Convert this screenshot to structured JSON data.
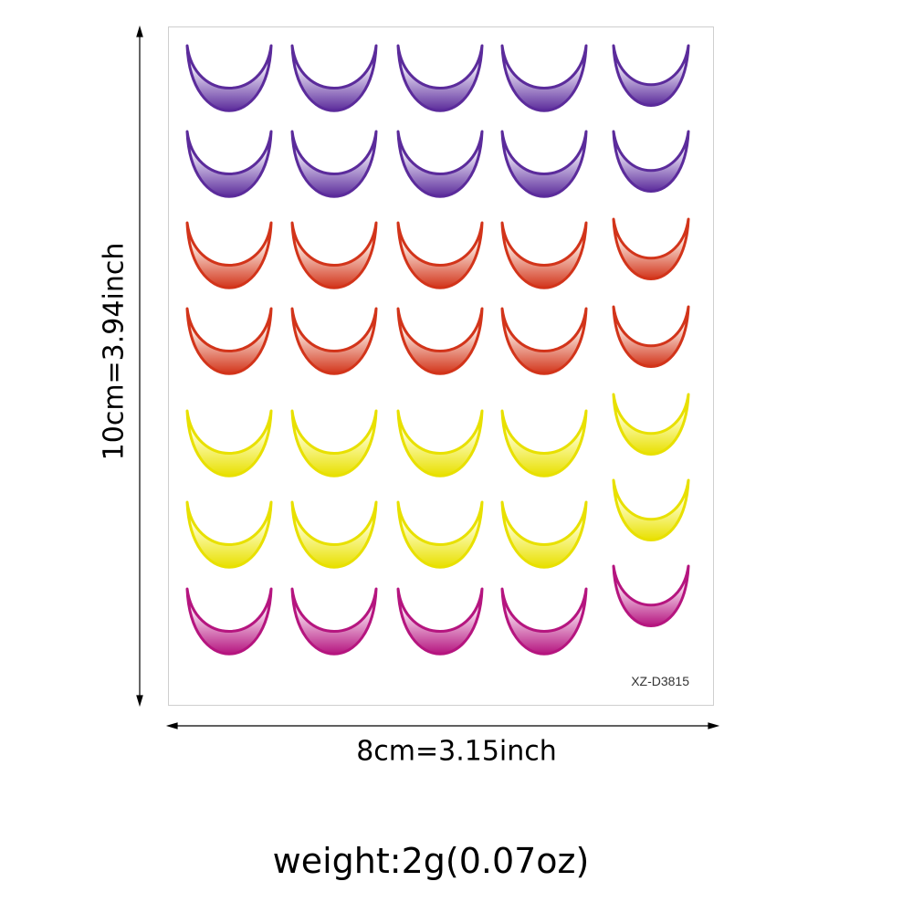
{
  "product": {
    "sku": "XZ-D3815"
  },
  "dimensions": {
    "height_label": "10cm=3.94inch",
    "width_label": "8cm=3.15inch"
  },
  "weight_label": "weight:2g(0.07oz)",
  "sticker_rows": [
    {
      "name": "purple",
      "color": "#5b2b9b",
      "light": "#e9e2f5",
      "count": 5
    },
    {
      "name": "purple",
      "color": "#5b2b9b",
      "light": "#e9e2f5",
      "count": 5
    },
    {
      "name": "orange-red",
      "color": "#d2341a",
      "light": "#fbe6dd",
      "count": 5
    },
    {
      "name": "orange-red",
      "color": "#d2341a",
      "light": "#fbe6dd",
      "count": 5
    },
    {
      "name": "yellow",
      "color": "#e8e000",
      "light": "#ffffc8",
      "count": 5
    },
    {
      "name": "yellow",
      "color": "#e8e000",
      "light": "#ffffc8",
      "count": 5
    },
    {
      "name": "magenta",
      "color": "#b5157f",
      "light": "#f7dcef",
      "count": 5
    }
  ]
}
